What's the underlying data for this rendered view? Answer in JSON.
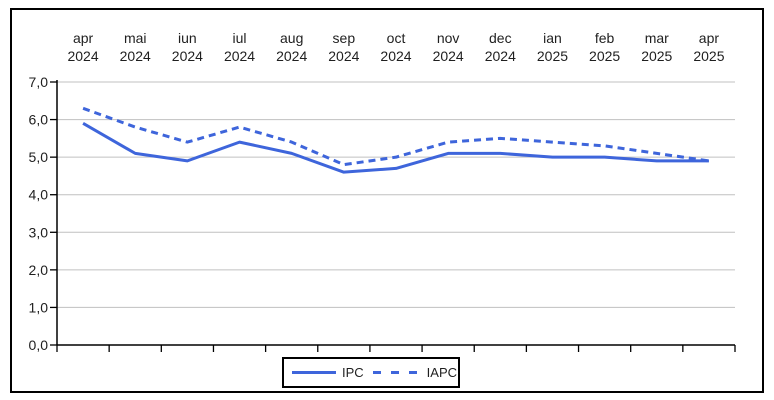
{
  "chart_data": {
    "type": "line",
    "categories": [
      {
        "month": "apr",
        "year": "2024"
      },
      {
        "month": "mai",
        "year": "2024"
      },
      {
        "month": "iun",
        "year": "2024"
      },
      {
        "month": "iul",
        "year": "2024"
      },
      {
        "month": "aug",
        "year": "2024"
      },
      {
        "month": "sep",
        "year": "2024"
      },
      {
        "month": "oct",
        "year": "2024"
      },
      {
        "month": "nov",
        "year": "2024"
      },
      {
        "month": "dec",
        "year": "2024"
      },
      {
        "month": "ian",
        "year": "2025"
      },
      {
        "month": "feb",
        "year": "2025"
      },
      {
        "month": "mar",
        "year": "2025"
      },
      {
        "month": "apr",
        "year": "2025"
      }
    ],
    "series": [
      {
        "name": "IPC",
        "style": "solid",
        "values": [
          5.9,
          5.1,
          4.9,
          5.4,
          5.1,
          4.6,
          4.7,
          5.1,
          5.1,
          5.0,
          5.0,
          4.9,
          4.9
        ]
      },
      {
        "name": "IAPC",
        "style": "dashed",
        "values": [
          6.3,
          5.8,
          5.4,
          5.8,
          5.4,
          4.8,
          5.0,
          5.4,
          5.5,
          5.4,
          5.3,
          5.1,
          4.9
        ]
      }
    ],
    "ylim": [
      0,
      7
    ],
    "ytick_step": 1,
    "ytick_labels": [
      "0,0",
      "1,0",
      "2,0",
      "3,0",
      "4,0",
      "5,0",
      "6,0",
      "7,0"
    ],
    "decimal_separator": ",",
    "grid": "horizontal",
    "legend_position": "bottom",
    "colors": {
      "line": "#3E65DB",
      "grid": "#C0C0C0",
      "axis": "#000000",
      "text": "#1F1F1F",
      "background": "#FFFFFF",
      "border": "#000000"
    }
  }
}
